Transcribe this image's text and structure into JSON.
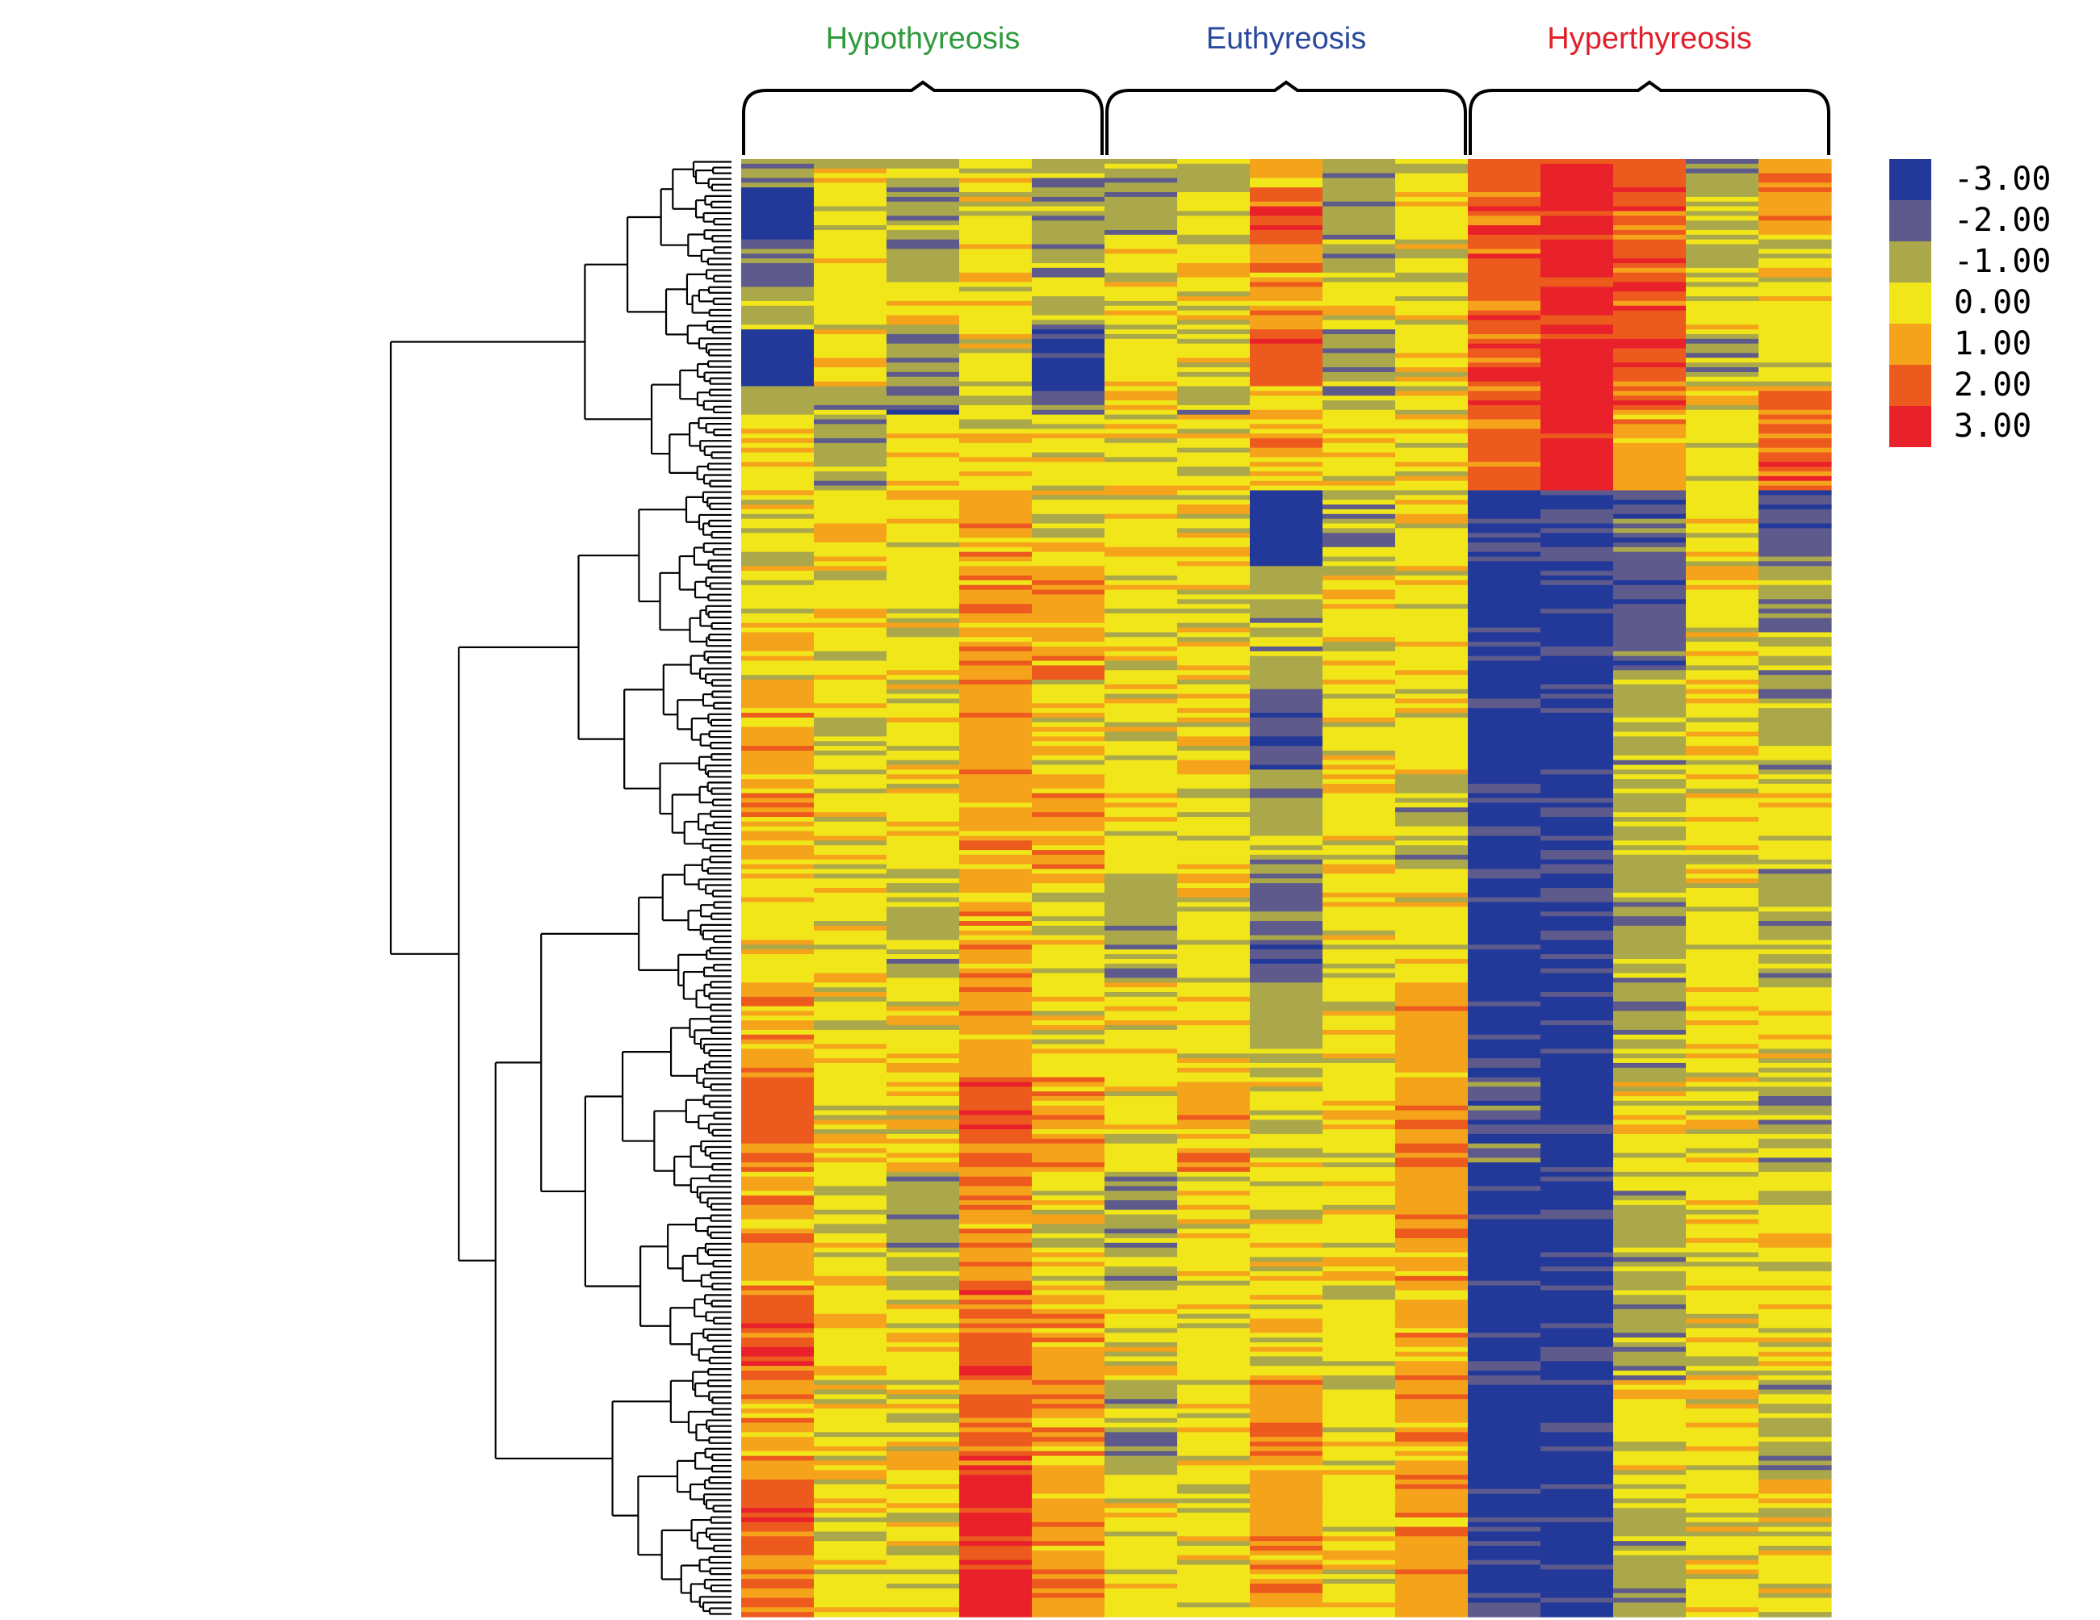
{
  "chart_data": {
    "type": "heatmap",
    "title": "",
    "xlabel": "",
    "ylabel": "",
    "groups": [
      {
        "name": "Hypothyreosis",
        "color": "#2e9a3c",
        "samples": 5
      },
      {
        "name": "Euthyreosis",
        "color": "#2a4a9c",
        "samples": 5
      },
      {
        "name": "Hyperthyreosis",
        "color": "#e0202a",
        "samples": 5
      }
    ],
    "color_scale": {
      "min": -3,
      "max": 3,
      "stops": [
        {
          "label": "-3.00",
          "value": -3,
          "color": "#22399a"
        },
        {
          "label": "-2.00",
          "value": -2,
          "color": "#5e5a8c"
        },
        {
          "label": "-1.00",
          "value": -1,
          "color": "#aaa84a"
        },
        {
          "label": "0.00",
          "value": 0,
          "color": "#f0e619"
        },
        {
          "label": "1.00",
          "value": 1,
          "color": "#f6a31c"
        },
        {
          "label": "2.00",
          "value": 2,
          "color": "#ec5a1e"
        },
        {
          "label": "3.00",
          "value": 3,
          "color": "#e8212a"
        }
      ]
    },
    "row_dendrogram": true,
    "legend_position": "right",
    "grid": false,
    "row_blocks": [
      {
        "rows": 6,
        "values": [
          -1,
          0,
          -1,
          0,
          -1,
          -1,
          -1,
          1,
          -1,
          0,
          2,
          3,
          2,
          -1,
          1
        ]
      },
      {
        "rows": 10,
        "values": [
          -3,
          0,
          -1,
          0,
          -1,
          -1,
          0,
          2,
          -1,
          0,
          2,
          3,
          2,
          -1,
          1
        ]
      },
      {
        "rows": 10,
        "values": [
          -2,
          0,
          -1,
          0,
          -1,
          0,
          0,
          1,
          -1,
          0,
          2,
          3,
          2,
          -1,
          0
        ]
      },
      {
        "rows": 10,
        "values": [
          -1,
          0,
          0,
          0,
          -1,
          0,
          0,
          1,
          0,
          0,
          2,
          3,
          2,
          0,
          0
        ]
      },
      {
        "rows": 12,
        "values": [
          -3,
          0,
          -1,
          0,
          -3,
          0,
          0,
          2,
          -1,
          0,
          2,
          3,
          2,
          -1,
          0
        ]
      },
      {
        "rows": 6,
        "values": [
          -1,
          -1,
          -2,
          -1,
          -2,
          0,
          -1,
          0,
          -1,
          0,
          2,
          3,
          2,
          0,
          1
        ]
      },
      {
        "rows": 16,
        "values": [
          0,
          -1,
          0,
          0,
          0,
          0,
          0,
          1,
          0,
          0,
          2,
          3,
          1,
          0,
          2
        ]
      },
      {
        "rows": 16,
        "values": [
          0,
          0,
          0,
          1,
          0,
          0,
          0,
          -3,
          -1,
          0,
          -3,
          -3,
          -2,
          0,
          -2
        ]
      },
      {
        "rows": 24,
        "values": [
          0,
          0,
          0,
          1,
          1,
          0,
          0,
          -1,
          0,
          0,
          -3,
          -3,
          -2,
          0,
          -1
        ]
      },
      {
        "rows": 20,
        "values": [
          1,
          0,
          0,
          1,
          0,
          0,
          0,
          -2,
          0,
          0,
          -3,
          -3,
          -1,
          0,
          -1
        ]
      },
      {
        "rows": 20,
        "values": [
          1,
          0,
          0,
          1,
          1,
          0,
          0,
          -1,
          0,
          -1,
          -3,
          -3,
          -1,
          0,
          0
        ]
      },
      {
        "rows": 24,
        "values": [
          0,
          0,
          -1,
          1,
          0,
          -1,
          0,
          -2,
          0,
          0,
          -3,
          -3,
          -1,
          0,
          -1
        ]
      },
      {
        "rows": 20,
        "values": [
          1,
          0,
          0,
          1,
          0,
          0,
          0,
          -1,
          0,
          1,
          -3,
          -3,
          -1,
          0,
          0
        ]
      },
      {
        "rows": 20,
        "values": [
          2,
          0,
          0,
          2,
          1,
          0,
          1,
          0,
          0,
          1,
          -2,
          -3,
          0,
          0,
          -1
        ]
      },
      {
        "rows": 24,
        "values": [
          1,
          0,
          -1,
          1,
          0,
          -1,
          0,
          0,
          0,
          1,
          -3,
          -3,
          -1,
          0,
          0
        ]
      },
      {
        "rows": 20,
        "values": [
          2,
          0,
          0,
          2,
          1,
          0,
          0,
          0,
          0,
          1,
          -3,
          -3,
          -1,
          0,
          0
        ]
      },
      {
        "rows": 20,
        "values": [
          1,
          0,
          0,
          2,
          1,
          -1,
          0,
          1,
          0,
          1,
          -3,
          -3,
          0,
          0,
          -1
        ]
      },
      {
        "rows": 30,
        "values": [
          2,
          0,
          0,
          3,
          1,
          0,
          0,
          1,
          0,
          1,
          -3,
          -3,
          -1,
          0,
          0
        ]
      }
    ]
  }
}
